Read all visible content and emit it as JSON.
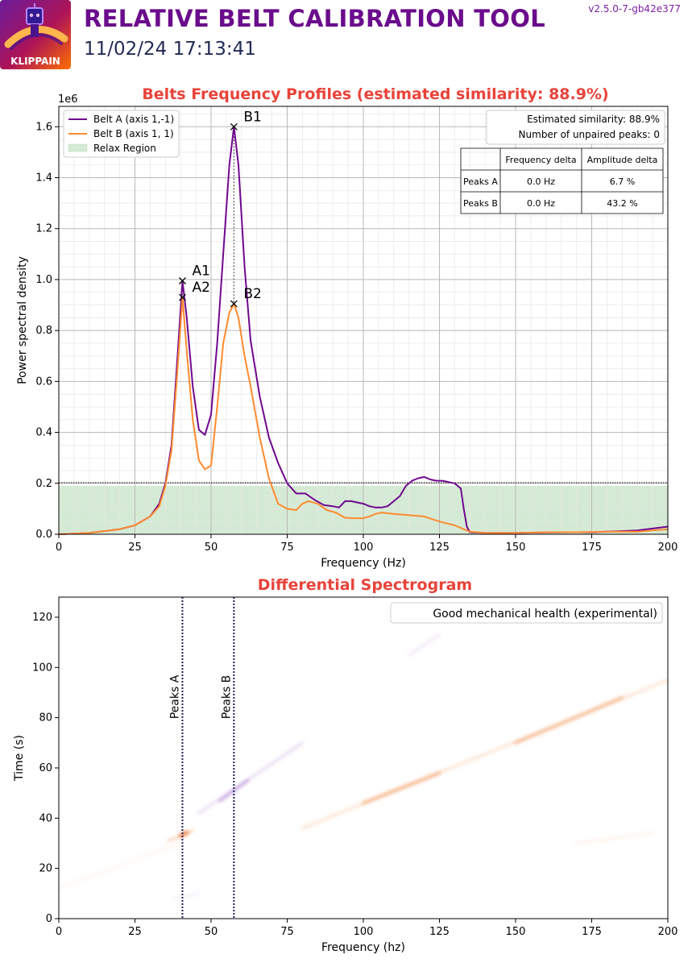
{
  "header": {
    "title": "RELATIVE BELT CALIBRATION TOOL",
    "datetime": "11/02/24 17:13:41",
    "version": "v2.5.0-7-gb42e377",
    "logo_text": "KLIPPAIN",
    "title_color": "#6a0c8c",
    "accent_color": "#e8433a"
  },
  "chart_data": [
    {
      "type": "line",
      "title": "Belts Frequency Profiles (estimated similarity: 88.9%)",
      "xlabel": "Frequency (Hz)",
      "ylabel": "Power spectral density",
      "y_multiplier": "1e6",
      "xlim": [
        0,
        200
      ],
      "ylim": [
        0,
        1.68
      ],
      "xticks": [
        0,
        25,
        50,
        75,
        100,
        125,
        150,
        175,
        200
      ],
      "yticks": [
        0.0,
        0.2,
        0.4,
        0.6,
        0.8,
        1.0,
        1.2,
        1.4,
        1.6
      ],
      "ytick_labels": [
        "0.0",
        "0.2",
        "0.4",
        "0.6",
        "0.8",
        "1.0",
        "1.2",
        "1.4",
        "1.6"
      ],
      "grid": true,
      "legend_position": "top-left",
      "series": [
        {
          "name": "Belt A (axis 1,-1)",
          "color": "#70088e",
          "x": [
            0,
            10,
            20,
            25,
            30,
            33,
            35,
            37,
            39,
            40.6,
            42,
            44,
            46,
            48,
            50,
            52,
            54,
            56,
            57.5,
            59,
            61,
            63,
            66,
            69,
            72,
            75,
            78,
            81,
            84,
            87,
            90,
            92,
            94,
            96,
            98,
            100,
            102,
            104,
            106,
            108,
            110,
            112,
            114,
            116,
            118,
            120,
            122,
            124,
            126,
            128,
            130,
            132,
            133,
            134,
            135,
            140,
            150,
            160,
            170,
            175,
            180,
            190,
            200
          ],
          "y": [
            0.0,
            0.005,
            0.02,
            0.035,
            0.07,
            0.12,
            0.2,
            0.35,
            0.7,
            0.995,
            0.85,
            0.58,
            0.41,
            0.39,
            0.47,
            0.75,
            1.1,
            1.45,
            1.6,
            1.45,
            1.05,
            0.76,
            0.54,
            0.38,
            0.28,
            0.2,
            0.16,
            0.16,
            0.135,
            0.115,
            0.11,
            0.105,
            0.13,
            0.13,
            0.125,
            0.12,
            0.11,
            0.105,
            0.105,
            0.11,
            0.13,
            0.15,
            0.19,
            0.21,
            0.22,
            0.225,
            0.215,
            0.21,
            0.21,
            0.205,
            0.2,
            0.18,
            0.1,
            0.03,
            0.008,
            0.005,
            0.005,
            0.007,
            0.008,
            0.008,
            0.01,
            0.015,
            0.03
          ]
        },
        {
          "name": "Belt B (axis 1, 1)",
          "color": "#ff8a2e",
          "x": [
            0,
            10,
            20,
            25,
            30,
            33,
            35,
            37,
            39,
            40.6,
            42,
            44,
            46,
            48,
            50,
            52,
            54,
            56,
            57.5,
            59,
            61,
            63,
            66,
            69,
            72,
            75,
            78,
            80,
            82,
            85,
            88,
            91,
            94,
            97,
            100,
            102,
            104,
            106,
            110,
            115,
            120,
            125,
            130,
            133,
            135,
            140,
            150,
            160,
            170,
            180,
            190,
            200
          ],
          "y": [
            0.0,
            0.005,
            0.02,
            0.035,
            0.07,
            0.11,
            0.19,
            0.33,
            0.65,
            0.93,
            0.72,
            0.45,
            0.29,
            0.255,
            0.27,
            0.5,
            0.75,
            0.87,
            0.905,
            0.85,
            0.7,
            0.58,
            0.38,
            0.22,
            0.12,
            0.1,
            0.095,
            0.12,
            0.13,
            0.12,
            0.095,
            0.085,
            0.065,
            0.063,
            0.063,
            0.07,
            0.08,
            0.085,
            0.08,
            0.075,
            0.07,
            0.05,
            0.035,
            0.02,
            0.01,
            0.005,
            0.005,
            0.008,
            0.008,
            0.01,
            0.01,
            0.02
          ]
        }
      ],
      "relax_region": {
        "name": "Relax Region",
        "color": "#d5ead5",
        "y": 0.19
      },
      "peaks": [
        {
          "label": "A1",
          "x": 40.6,
          "y": 0.995
        },
        {
          "label": "A2",
          "x": 40.6,
          "y": 0.93
        },
        {
          "label": "B1",
          "x": 57.5,
          "y": 1.6
        },
        {
          "label": "B2",
          "x": 57.5,
          "y": 0.905
        }
      ],
      "info_box": {
        "similarity": "Estimated similarity: 88.9%",
        "unpaired": "Number of unpaired peaks: 0"
      },
      "table": {
        "headers": [
          "",
          "Frequency delta",
          "Amplitude delta"
        ],
        "rows": [
          [
            "Peaks A",
            "0.0 Hz",
            "6.7 %"
          ],
          [
            "Peaks B",
            "0.0 Hz",
            "43.2 %"
          ]
        ]
      }
    },
    {
      "type": "heatmap",
      "title": "Differential Spectrogram",
      "xlabel": "Frequency (hz)",
      "ylabel": "Time (s)",
      "xlim": [
        0,
        200
      ],
      "ylim": [
        0,
        128
      ],
      "xticks": [
        0,
        25,
        50,
        75,
        100,
        125,
        150,
        175,
        200
      ],
      "yticks": [
        0,
        20,
        40,
        60,
        80,
        100,
        120
      ],
      "legend": "Good mechanical health (experimental)",
      "legend_position": "top-right",
      "vlines": [
        {
          "label": "Peaks A",
          "x": 40.6
        },
        {
          "label": "Peaks B",
          "x": 57.5
        }
      ],
      "streaks": [
        {
          "color": "#e8692a",
          "x1": 40,
          "y1": 33,
          "x2": 42,
          "y2": 34.2,
          "width": 5,
          "opacity": 0.95
        },
        {
          "color": "#f5a060",
          "x1": 36,
          "y1": 31,
          "x2": 44,
          "y2": 35,
          "width": 3,
          "opacity": 0.5
        },
        {
          "color": "#a070cc",
          "x1": 46,
          "y1": 42,
          "x2": 80,
          "y2": 70,
          "width": 3,
          "opacity": 0.28
        },
        {
          "color": "#9b5ec7",
          "x1": 53,
          "y1": 47,
          "x2": 62,
          "y2": 55,
          "width": 4,
          "opacity": 0.45
        },
        {
          "color": "#f3a36b",
          "x1": 80,
          "y1": 36,
          "x2": 200,
          "y2": 95,
          "width": 3,
          "opacity": 0.35
        },
        {
          "color": "#ee8a44",
          "x1": 100,
          "y1": 46,
          "x2": 125,
          "y2": 58,
          "width": 4,
          "opacity": 0.55
        },
        {
          "color": "#ee8a44",
          "x1": 150,
          "y1": 70,
          "x2": 185,
          "y2": 88,
          "width": 4,
          "opacity": 0.5
        },
        {
          "color": "#c8a8dd",
          "x1": 115,
          "y1": 105,
          "x2": 125,
          "y2": 113,
          "width": 3,
          "opacity": 0.3
        },
        {
          "color": "#f7c09a",
          "x1": 0,
          "y1": 12,
          "x2": 40,
          "y2": 30,
          "width": 2,
          "opacity": 0.22
        },
        {
          "color": "#f7c09a",
          "x1": 170,
          "y1": 30,
          "x2": 195,
          "y2": 34,
          "width": 2,
          "opacity": 0.3
        },
        {
          "color": "#c8a8dd",
          "x1": 38,
          "y1": 8,
          "x2": 46,
          "y2": 10,
          "width": 2,
          "opacity": 0.3
        }
      ]
    }
  ]
}
